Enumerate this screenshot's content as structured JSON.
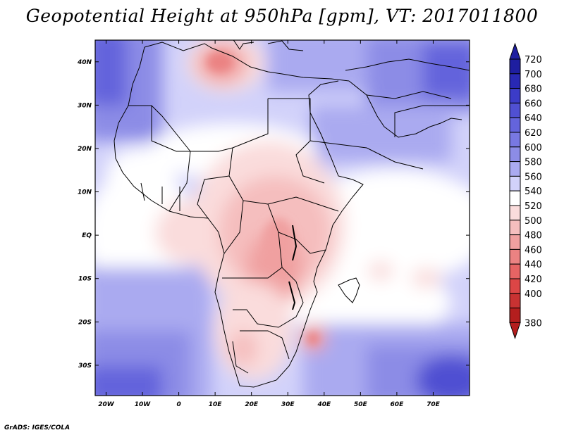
{
  "title": "Geopotential Height at 950hPa [gpm], VT: 2017011800",
  "footer": "GrADS: IGES/COLA",
  "map": {
    "lon_range": [
      -23,
      80
    ],
    "lat_range": [
      -37,
      45
    ],
    "x_ticks": [
      {
        "lon": -20,
        "label": "20W"
      },
      {
        "lon": -10,
        "label": "10W"
      },
      {
        "lon": 0,
        "label": "0"
      },
      {
        "lon": 10,
        "label": "10E"
      },
      {
        "lon": 20,
        "label": "20E"
      },
      {
        "lon": 30,
        "label": "30E"
      },
      {
        "lon": 40,
        "label": "40E"
      },
      {
        "lon": 50,
        "label": "50E"
      },
      {
        "lon": 60,
        "label": "60E"
      },
      {
        "lon": 70,
        "label": "70E"
      }
    ],
    "y_ticks": [
      {
        "lat": 40,
        "label": "40N"
      },
      {
        "lat": 30,
        "label": "30N"
      },
      {
        "lat": 20,
        "label": "20N"
      },
      {
        "lat": 10,
        "label": "10N"
      },
      {
        "lat": 0,
        "label": "EQ"
      },
      {
        "lat": -10,
        "label": "10S"
      },
      {
        "lat": -20,
        "label": "20S"
      },
      {
        "lat": -30,
        "label": "30S"
      }
    ]
  },
  "colorbar": {
    "levels": [
      {
        "value": "720",
        "color": "#1e1ea0"
      },
      {
        "value": "700",
        "color": "#2828b4"
      },
      {
        "value": "680",
        "color": "#3c3cc8"
      },
      {
        "value": "660",
        "color": "#5050d2"
      },
      {
        "value": "640",
        "color": "#6464dc"
      },
      {
        "value": "620",
        "color": "#7878e2"
      },
      {
        "value": "600",
        "color": "#8c8ce6"
      },
      {
        "value": "580",
        "color": "#aaaaf0"
      },
      {
        "value": "560",
        "color": "#d2d2fa"
      },
      {
        "value": "540",
        "color": "#ffffff"
      },
      {
        "value": "520",
        "color": "#fadcdc"
      },
      {
        "value": "500",
        "color": "#f5bebe"
      },
      {
        "value": "480",
        "color": "#f0a0a0"
      },
      {
        "value": "460",
        "color": "#eb8282"
      },
      {
        "value": "440",
        "color": "#e66464"
      },
      {
        "value": "420",
        "color": "#dc4646"
      },
      {
        "value": "400",
        "color": "#c83232"
      },
      {
        "value": "380",
        "color": "#b41e1e"
      }
    ]
  }
}
